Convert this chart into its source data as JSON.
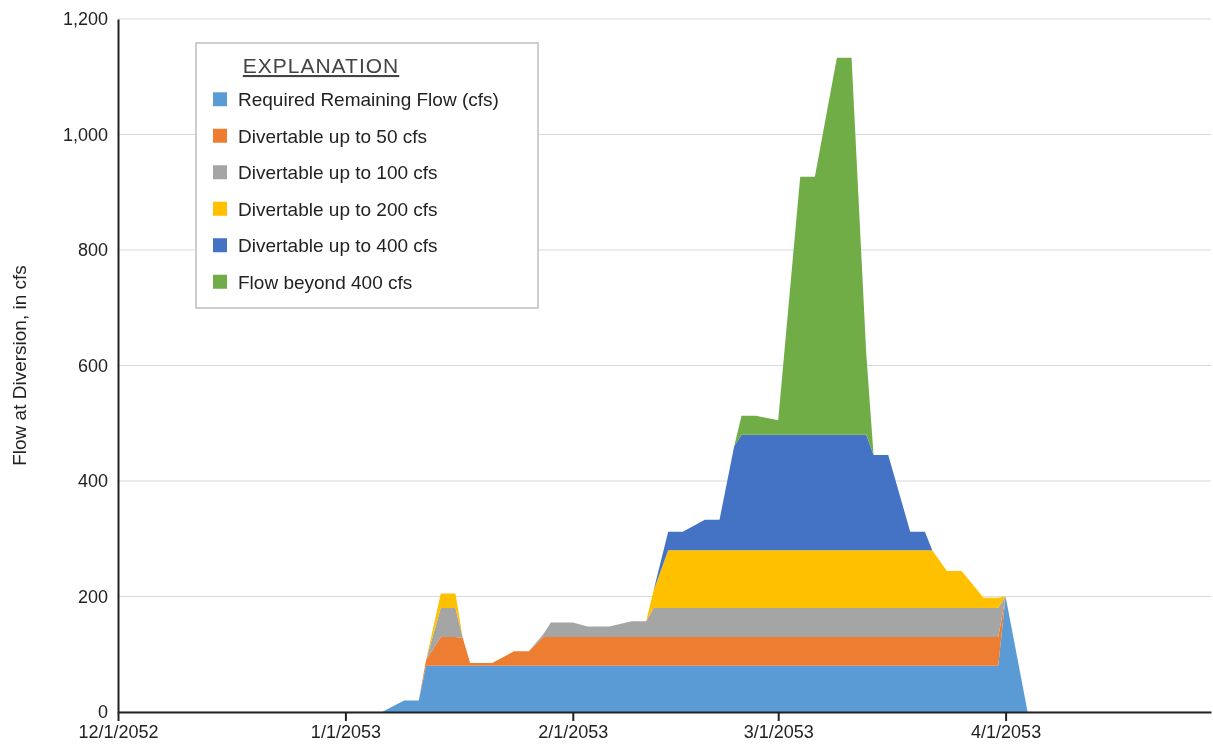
{
  "chart_data": {
    "type": "area",
    "stacked": true,
    "ylabel": "Flow at Diversion, in cfs",
    "legend_title": "EXPLANATION",
    "legend": "top left",
    "grid": "y",
    "x": [
      "2053-01-06",
      "2053-01-09",
      "2053-01-11",
      "2053-01-12",
      "2053-01-14",
      "2053-01-16",
      "2053-01-17",
      "2053-01-18",
      "2053-01-21",
      "2053-01-24",
      "2053-01-26",
      "2053-01-28",
      "2053-01-29",
      "2053-02-01",
      "2053-02-03",
      "2053-02-06",
      "2053-02-09",
      "2053-02-11",
      "2053-02-12",
      "2053-02-14",
      "2053-02-16",
      "2053-02-19",
      "2053-02-21",
      "2053-02-23",
      "2053-02-24",
      "2053-02-26",
      "2053-03-01",
      "2053-03-04",
      "2053-03-06",
      "2053-03-09",
      "2053-03-11",
      "2053-03-13",
      "2053-03-14",
      "2053-03-16",
      "2053-03-19",
      "2053-03-21",
      "2053-03-22",
      "2053-03-24",
      "2053-03-26",
      "2053-03-29",
      "2053-03-31",
      "2053-04-01",
      "2053-04-04"
    ],
    "series": [
      {
        "name": "Required Remaining Flow (cfs)",
        "color": "#5b9bd5",
        "values": [
          0,
          20,
          20,
          80,
          80,
          80,
          80,
          80,
          80,
          80,
          80,
          80,
          80,
          80,
          80,
          80,
          80,
          80,
          80,
          80,
          80,
          80,
          80,
          80,
          80,
          80,
          80,
          80,
          80,
          80,
          80,
          80,
          80,
          80,
          80,
          80,
          80,
          80,
          80,
          80,
          80,
          200,
          0
        ]
      },
      {
        "name": "Divertable up to 50 cfs",
        "color": "#ed7d31",
        "values": [
          null,
          null,
          0,
          10,
          50,
          50,
          48,
          5,
          5,
          25,
          25,
          50,
          50,
          50,
          50,
          50,
          50,
          50,
          50,
          50,
          50,
          50,
          50,
          50,
          50,
          50,
          50,
          50,
          50,
          50,
          50,
          50,
          50,
          50,
          50,
          50,
          50,
          50,
          50,
          50,
          50,
          0,
          null
        ]
      },
      {
        "name": "Divertable up to 100 cfs",
        "color": "#a5a5a5",
        "values": [
          null,
          null,
          null,
          0,
          50,
          50,
          0,
          null,
          null,
          null,
          0,
          5,
          25,
          25,
          18,
          18,
          27,
          27,
          50,
          50,
          50,
          50,
          50,
          50,
          50,
          50,
          50,
          50,
          50,
          50,
          50,
          50,
          50,
          50,
          50,
          50,
          50,
          50,
          50,
          50,
          50,
          0,
          null
        ]
      },
      {
        "name": "Divertable up to 200 cfs",
        "color": "#ffc000",
        "values": [
          null,
          null,
          null,
          0,
          25,
          25,
          0,
          null,
          null,
          null,
          null,
          null,
          null,
          null,
          null,
          null,
          null,
          0,
          30,
          100,
          100,
          100,
          100,
          100,
          100,
          100,
          100,
          100,
          100,
          100,
          100,
          100,
          100,
          100,
          100,
          100,
          100,
          64,
          64,
          18,
          18,
          0,
          null
        ]
      },
      {
        "name": "Divertable up to 400 cfs",
        "color": "#4472c4",
        "values": [
          null,
          null,
          null,
          null,
          null,
          null,
          null,
          null,
          null,
          null,
          null,
          null,
          null,
          null,
          null,
          null,
          null,
          null,
          0,
          32,
          32,
          53,
          53,
          180,
          200,
          200,
          200,
          200,
          200,
          200,
          200,
          200,
          165,
          165,
          32,
          32,
          0,
          null,
          null,
          null,
          null,
          null,
          null
        ]
      },
      {
        "name": "Flow beyond 400 cfs",
        "color": "#70ad47",
        "values": [
          null,
          null,
          null,
          null,
          null,
          null,
          null,
          null,
          null,
          null,
          null,
          null,
          null,
          null,
          null,
          null,
          null,
          null,
          null,
          null,
          null,
          null,
          null,
          0,
          33,
          33,
          25,
          447,
          447,
          653,
          653,
          141,
          0,
          null,
          null,
          null,
          null,
          null,
          null,
          null,
          null,
          null,
          null
        ]
      }
    ],
    "xlim": [
      "2052-12-01",
      "2053-04-29"
    ],
    "xticks": [
      {
        "value": "2052-12-01",
        "label": "12/1/2052"
      },
      {
        "value": "2053-01-01",
        "label": "1/1/2053"
      },
      {
        "value": "2053-02-01",
        "label": "2/1/2053"
      },
      {
        "value": "2053-03-01",
        "label": "3/1/2053"
      },
      {
        "value": "2053-04-01",
        "label": "4/1/2053"
      }
    ],
    "ylim": [
      0,
      1200
    ],
    "yticks": [
      0,
      200,
      400,
      600,
      800,
      {
        "value": 1000,
        "label": "1,000"
      },
      {
        "value": 1200,
        "label": "1,200"
      }
    ]
  }
}
